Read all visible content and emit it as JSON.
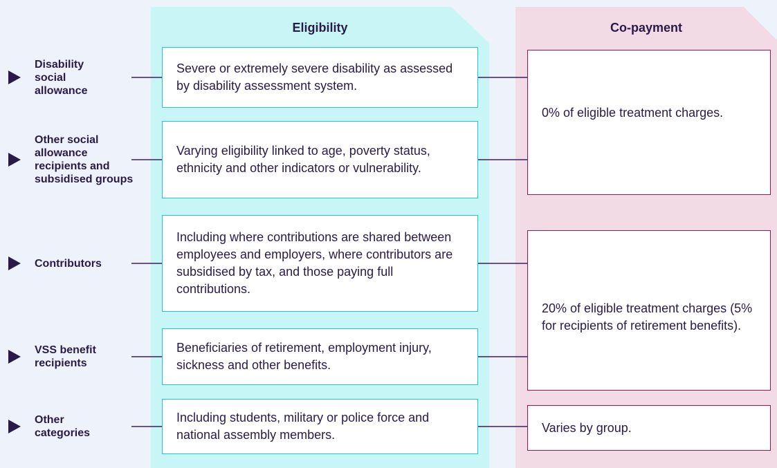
{
  "columns": {
    "eligibility": "Eligibility",
    "copayment": "Co-payment"
  },
  "rows": [
    {
      "label": "Disability social allowance",
      "eligibility": "Severe or extremely severe disability as assessed by disability assessment system."
    },
    {
      "label": "Other social allowance recipients and subsidised groups",
      "eligibility": "Varying eligibility linked to age, poverty status, ethnicity and other indicators or vulnerability."
    },
    {
      "label": "Contributors",
      "eligibility": "Including where contributions are shared between employees and employers, where contributors are subsidised by tax, and those paying full contributions."
    },
    {
      "label": "VSS benefit recipients",
      "eligibility": "Beneficiaries of retirement, employment injury, sickness and other benefits."
    },
    {
      "label": "Other categories",
      "eligibility": "Including students, military or police force and national assembly members."
    }
  ],
  "copayments": [
    "0% of eligible treatment charges.",
    "20% of eligible treatment charges (5% for recipients of retirement benefits).",
    "Varies by group."
  ]
}
